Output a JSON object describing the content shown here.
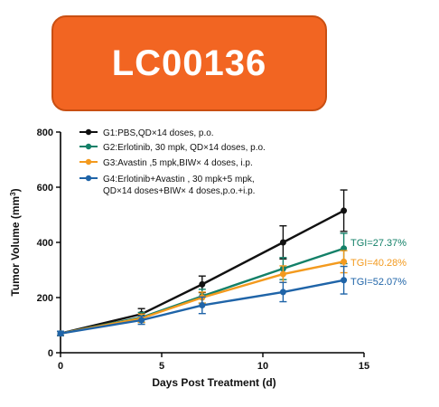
{
  "banner": {
    "title": "LC00136",
    "color": "#f26522"
  },
  "chart_data": {
    "type": "line",
    "xlabel": "Days Post Treatment (d)",
    "ylabel_main": "Tumor Volume (mm",
    "ylabel_sup": "3",
    "ylabel_close": ")",
    "xlim": [
      0,
      15
    ],
    "ylim": [
      0,
      800
    ],
    "xticks": [
      "0",
      "5",
      "10",
      "15"
    ],
    "yticks": [
      "0",
      "200",
      "400",
      "600",
      "800"
    ],
    "grid": false,
    "legend_position": "top-left",
    "series": [
      {
        "name": "G1:PBS,QD×14 doses, p.o.",
        "name_line2": "",
        "color": "#111111",
        "x": [
          0,
          4,
          7,
          11,
          14
        ],
        "y": [
          70,
          140,
          248,
          400,
          515
        ],
        "err": [
          8,
          20,
          30,
          60,
          75
        ]
      },
      {
        "name": "G2:Erlotinib, 30 mpk, QD×14 doses, p.o.",
        "name_line2": "",
        "color": "#138068",
        "x": [
          0,
          4,
          7,
          11,
          14
        ],
        "y": [
          70,
          128,
          205,
          305,
          378
        ],
        "err": [
          8,
          18,
          25,
          40,
          55
        ]
      },
      {
        "name": "G3:Avastin ,5 mpk,BIW× 4 doses, i.p.",
        "name_line2": "",
        "color": "#f39a1e",
        "x": [
          0,
          4,
          7,
          11,
          14
        ],
        "y": [
          70,
          125,
          200,
          285,
          330
        ],
        "err": [
          8,
          15,
          20,
          30,
          40
        ]
      },
      {
        "name": "G4:Erlotinib+Avastin , 30 mpk+5 mpk,",
        "name_line2": "QD×14 doses+BIW× 4 doses,p.o.+i.p.",
        "color": "#1f64a8",
        "x": [
          0,
          4,
          7,
          11,
          14
        ],
        "y": [
          70,
          118,
          172,
          220,
          263
        ],
        "err": [
          8,
          15,
          30,
          35,
          50
        ]
      }
    ],
    "annotations": [
      {
        "text": "TGI=27.37%",
        "color": "#138068",
        "series": 1
      },
      {
        "text": "TGI=40.28%",
        "color": "#f39a1e",
        "series": 2
      },
      {
        "text": "TGI=52.07%",
        "color": "#1f64a8",
        "series": 3
      }
    ]
  }
}
